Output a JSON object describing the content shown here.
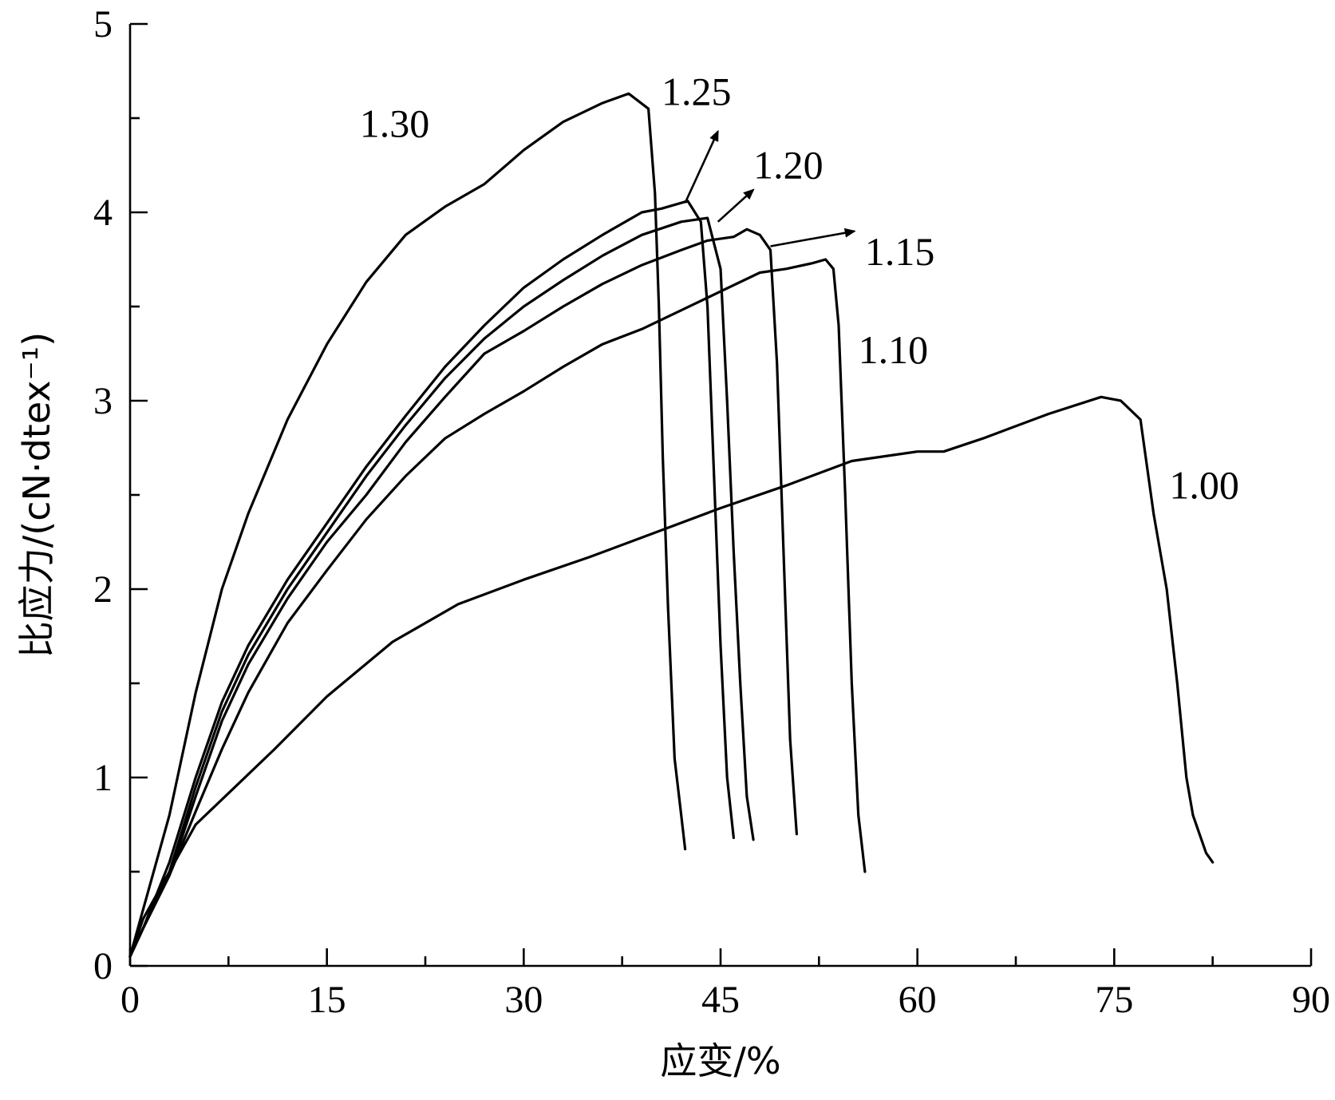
{
  "chart_data": {
    "type": "line",
    "title": "",
    "xlabel": "应变/%",
    "ylabel": "比应力/(cN·dtex⁻¹)",
    "xlim": [
      0,
      90
    ],
    "ylim": [
      0,
      5
    ],
    "x_ticks": [
      0,
      15,
      30,
      45,
      60,
      75,
      90
    ],
    "y_ticks": [
      0,
      1,
      2,
      3,
      4,
      5
    ],
    "grid": false,
    "legend": "none",
    "series": [
      {
        "name": "1.30",
        "x": [
          0,
          1,
          3,
          5,
          7,
          9,
          12,
          15,
          18,
          21,
          24,
          27,
          30,
          33,
          36,
          38,
          39.5,
          40.0,
          40.3,
          40.6,
          41,
          41.5,
          42,
          42.3
        ],
        "y": [
          0.05,
          0.3,
          0.8,
          1.45,
          2.0,
          2.4,
          2.9,
          3.3,
          3.63,
          3.88,
          4.03,
          4.15,
          4.33,
          4.48,
          4.58,
          4.63,
          4.55,
          4.1,
          3.5,
          2.7,
          1.9,
          1.1,
          0.8,
          0.62
        ]
      },
      {
        "name": "1.25",
        "x": [
          0,
          1,
          3,
          5,
          7,
          9,
          12,
          15,
          18,
          21,
          24,
          27,
          30,
          33,
          36,
          39,
          40.5,
          42.5,
          43.5,
          44.0,
          44.5,
          45.0,
          45.5,
          46.0
        ],
        "y": [
          0.05,
          0.2,
          0.55,
          1.0,
          1.4,
          1.7,
          2.05,
          2.35,
          2.65,
          2.92,
          3.18,
          3.4,
          3.6,
          3.75,
          3.88,
          4.0,
          4.02,
          4.06,
          3.95,
          3.5,
          2.6,
          1.7,
          1.0,
          0.68
        ]
      },
      {
        "name": "1.20",
        "x": [
          0,
          1,
          3,
          5,
          7,
          9,
          12,
          15,
          18,
          21,
          24,
          27,
          30,
          33,
          36,
          39,
          42,
          44,
          45,
          45.5,
          46.0,
          46.5,
          47.0,
          47.5
        ],
        "y": [
          0.05,
          0.2,
          0.5,
          0.95,
          1.35,
          1.65,
          2.0,
          2.3,
          2.6,
          2.87,
          3.12,
          3.33,
          3.5,
          3.64,
          3.77,
          3.88,
          3.95,
          3.97,
          3.7,
          3.0,
          2.2,
          1.5,
          0.9,
          0.67
        ]
      },
      {
        "name": "1.15",
        "x": [
          0,
          1,
          3,
          5,
          7,
          9,
          12,
          15,
          18,
          21,
          24,
          27,
          30,
          33,
          36,
          39,
          42,
          44,
          46,
          47,
          48,
          48.8,
          49.3,
          49.8,
          50.3,
          50.8
        ],
        "y": [
          0.05,
          0.2,
          0.48,
          0.9,
          1.3,
          1.6,
          1.95,
          2.25,
          2.5,
          2.78,
          3.02,
          3.25,
          3.37,
          3.5,
          3.62,
          3.72,
          3.8,
          3.85,
          3.87,
          3.91,
          3.88,
          3.8,
          3.2,
          2.2,
          1.2,
          0.7
        ]
      },
      {
        "name": "1.10",
        "x": [
          0,
          1,
          3,
          5,
          7,
          9,
          12,
          15,
          18,
          21,
          24,
          27,
          30,
          33,
          36,
          39,
          42,
          45,
          48,
          50,
          52,
          53,
          53.6,
          54.0,
          54.5,
          55.0,
          55.5,
          56.0
        ],
        "y": [
          0.05,
          0.2,
          0.48,
          0.82,
          1.15,
          1.45,
          1.82,
          2.1,
          2.37,
          2.6,
          2.8,
          2.93,
          3.05,
          3.18,
          3.3,
          3.38,
          3.48,
          3.58,
          3.68,
          3.7,
          3.73,
          3.75,
          3.7,
          3.4,
          2.5,
          1.5,
          0.8,
          0.5
        ]
      },
      {
        "name": "1.00",
        "x": [
          0,
          1,
          3,
          5,
          8,
          11,
          15,
          20,
          25,
          30,
          35,
          40,
          45,
          50,
          55,
          60,
          62,
          65,
          70,
          74,
          75.5,
          77,
          78,
          79,
          79.8,
          80.5,
          81.0,
          81.5,
          82.0,
          82.5
        ],
        "y": [
          0.05,
          0.25,
          0.5,
          0.75,
          0.95,
          1.15,
          1.43,
          1.72,
          1.92,
          2.05,
          2.17,
          2.3,
          2.43,
          2.55,
          2.68,
          2.73,
          2.73,
          2.8,
          2.93,
          3.02,
          3.0,
          2.9,
          2.4,
          2.0,
          1.5,
          1.0,
          0.8,
          0.7,
          0.6,
          0.55
        ]
      }
    ]
  },
  "annotations": [
    {
      "text": "1.30"
    },
    {
      "text": "1.25"
    },
    {
      "text": "1.20"
    },
    {
      "text": "1.15"
    },
    {
      "text": "1.10"
    },
    {
      "text": "1.00"
    }
  ]
}
